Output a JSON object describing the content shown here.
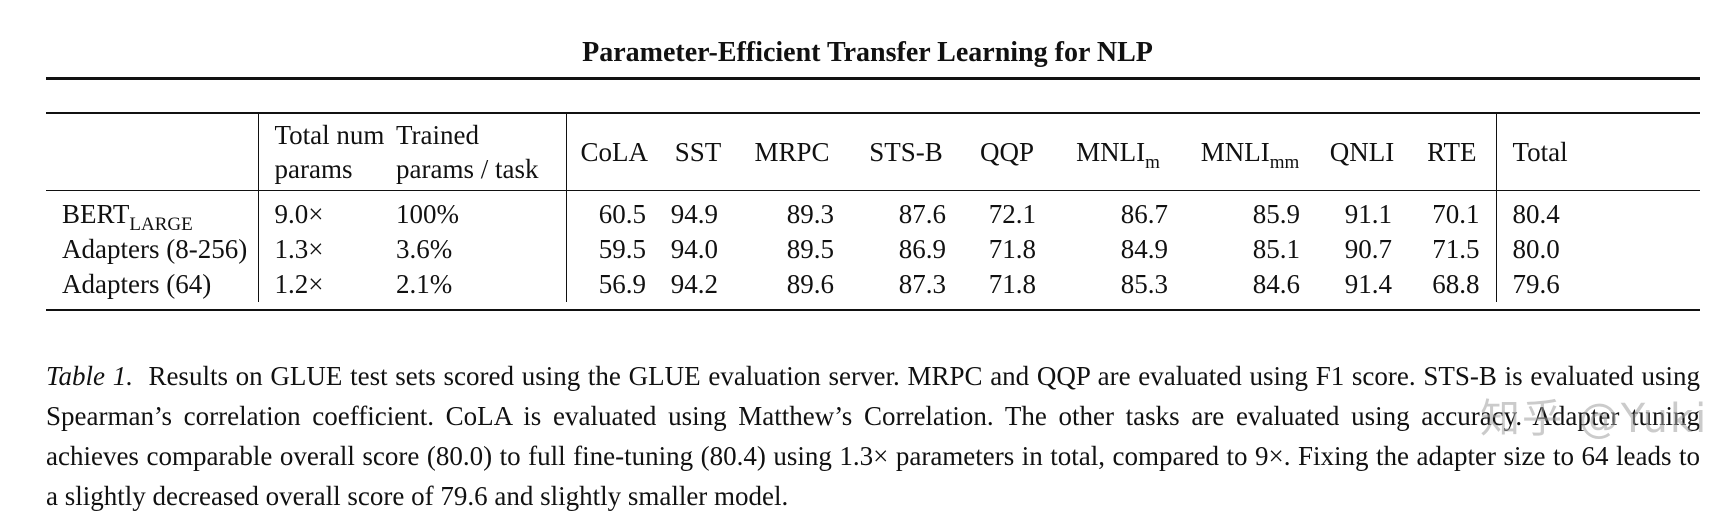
{
  "running_head": "Parameter-Efficient Transfer Learning for NLP",
  "table": {
    "headers": {
      "model": "",
      "total_params": [
        "Total num",
        "params"
      ],
      "trained_params": [
        "Trained",
        "params / task"
      ],
      "tasks": [
        {
          "base": "CoLA",
          "sub": ""
        },
        {
          "base": "SST",
          "sub": ""
        },
        {
          "base": "MRPC",
          "sub": ""
        },
        {
          "base": "STS-B",
          "sub": ""
        },
        {
          "base": "QQP",
          "sub": ""
        },
        {
          "base": "MNLI",
          "sub": "m"
        },
        {
          "base": "MNLI",
          "sub": "mm"
        },
        {
          "base": "QNLI",
          "sub": ""
        },
        {
          "base": "RTE",
          "sub": ""
        }
      ],
      "total": "Total"
    },
    "rows": [
      {
        "model": "BERT",
        "model_sub": "LARGE",
        "total_params": "9.0×",
        "trained_params": "100%",
        "scores": [
          "60.5",
          "94.9",
          "89.3",
          "87.6",
          "72.1",
          "86.7",
          "85.9",
          "91.1",
          "70.1"
        ],
        "total": "80.4"
      },
      {
        "model": "Adapters (8-256)",
        "model_sub": "",
        "total_params": "1.3×",
        "trained_params": "3.6%",
        "scores": [
          "59.5",
          "94.0",
          "89.5",
          "86.9",
          "71.8",
          "84.9",
          "85.1",
          "90.7",
          "71.5"
        ],
        "total": "80.0"
      },
      {
        "model": "Adapters (64)",
        "model_sub": "",
        "total_params": "1.2×",
        "trained_params": "2.1%",
        "scores": [
          "56.9",
          "94.2",
          "89.6",
          "87.3",
          "71.8",
          "85.3",
          "84.6",
          "91.4",
          "68.8"
        ],
        "total": "79.6"
      }
    ]
  },
  "caption": {
    "label": "Table 1.",
    "text": "Results on GLUE test sets scored using the GLUE evaluation server. MRPC and QQP are evaluated using F1 score. STS-B is evaluated using Spearman’s correlation coefficient. CoLA is evaluated using Matthew’s Correlation. The other tasks are evaluated using accuracy. Adapter tuning achieves comparable overall score (80.0) to full fine-tuning (80.4) using 1.3× parameters in total, compared to 9×. Fixing the adapter size to 64 leads to a slightly decreased overall score of 79.6 and slightly smaller model."
  },
  "watermark": "知乎 @Yuki"
}
